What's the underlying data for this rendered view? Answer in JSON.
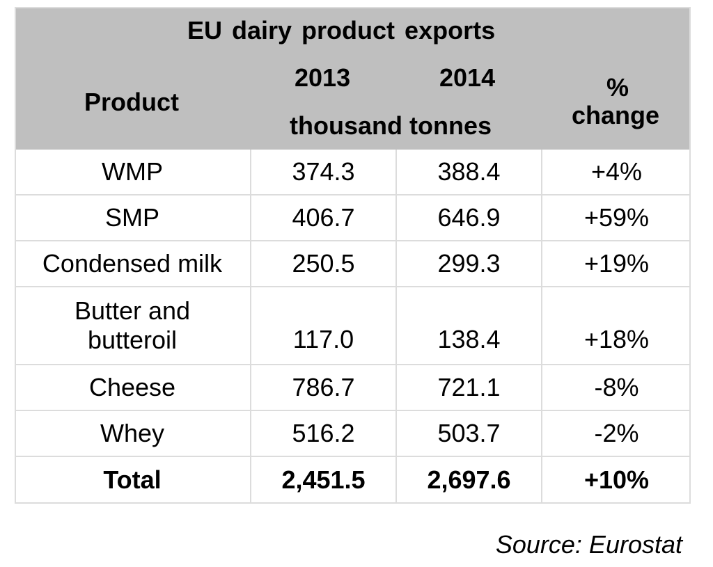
{
  "chart_data": {
    "type": "table",
    "title": "EU dairy product   exports",
    "header": {
      "product": "Product",
      "year_2013": "2013",
      "year_2014": "2014",
      "units": "thousand tonnes",
      "pct_symbol": "%",
      "pct_change": "change"
    },
    "rows": [
      {
        "product": "WMP",
        "y2013": "374.3",
        "y2014": "388.4",
        "change": "+4%"
      },
      {
        "product": "SMP",
        "y2013": "406.7",
        "y2014": "646.9",
        "change": "+59%"
      },
      {
        "product": "Condensed milk",
        "y2013": "250.5",
        "y2014": "299.3",
        "change": "+19%"
      },
      {
        "product": "Butter and butteroil",
        "y2013": "117.0",
        "y2014": "138.4",
        "change": "+18%"
      },
      {
        "product": "Cheese",
        "y2013": "786.7",
        "y2014": "721.1",
        "change": "-8%"
      },
      {
        "product": "Whey",
        "y2013": "516.2",
        "y2014": "503.7",
        "change": "-2%"
      }
    ],
    "total": {
      "product": "Total",
      "y2013": "2,451.5",
      "y2014": "2,697.6",
      "change": "+10%"
    },
    "source": "Source: Eurostat"
  },
  "colors": {
    "header_background": "#bfbfbf",
    "grid_line": "#dcdcdc",
    "text": "#000000"
  }
}
